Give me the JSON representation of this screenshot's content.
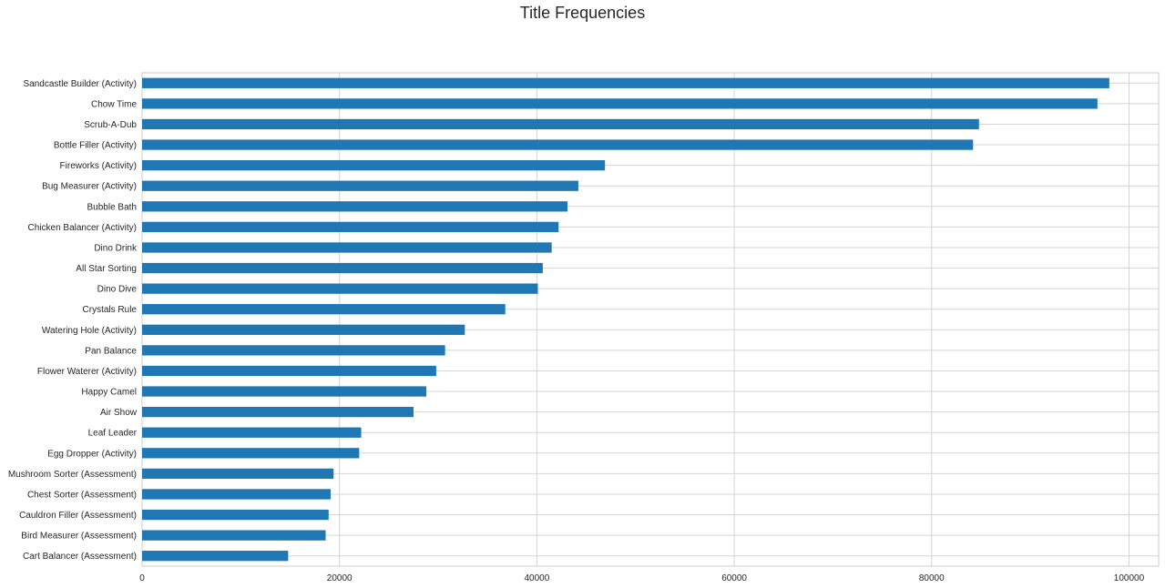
{
  "chart_data": {
    "type": "bar",
    "orientation": "horizontal",
    "title": "Title Frequencies",
    "xlabel": "",
    "ylabel": "",
    "xlim": [
      0,
      103000
    ],
    "x_ticks": [
      0,
      20000,
      40000,
      60000,
      80000,
      100000
    ],
    "grid": true,
    "bar_color": "#1f77b4",
    "categories": [
      "Sandcastle Builder (Activity)",
      "Chow Time",
      "Scrub-A-Dub",
      "Bottle Filler (Activity)",
      "Fireworks (Activity)",
      "Bug Measurer (Activity)",
      "Bubble Bath",
      "Chicken Balancer (Activity)",
      "Dino Drink",
      "All Star Sorting",
      "Dino Dive",
      "Crystals Rule",
      "Watering Hole (Activity)",
      "Pan Balance",
      "Flower Waterer (Activity)",
      "Happy Camel",
      "Air Show",
      "Leaf Leader",
      "Egg Dropper (Activity)",
      "Mushroom Sorter (Assessment)",
      "Chest Sorter (Assessment)",
      "Cauldron Filler (Assessment)",
      "Bird Measurer (Assessment)",
      "Cart Balancer (Assessment)"
    ],
    "values": [
      98000,
      96800,
      84800,
      84200,
      46900,
      44200,
      43100,
      42200,
      41500,
      40600,
      40100,
      36800,
      32700,
      30700,
      29800,
      28800,
      27500,
      22200,
      22000,
      19400,
      19100,
      18900,
      18600,
      14800
    ]
  }
}
